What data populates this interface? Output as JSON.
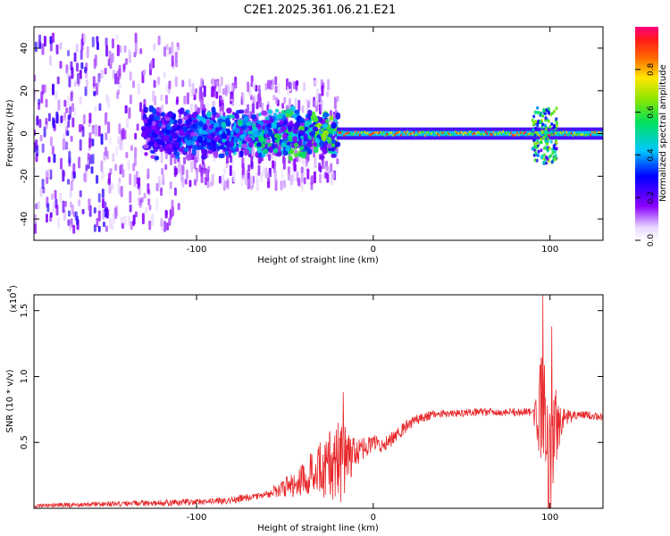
{
  "figure_title": "C2E1.2025.361.06.21.E21",
  "colors": {
    "snr_line": "#e8282b",
    "axis": "#000000",
    "cbar_top": "#ff007f",
    "cbar_bottom": "#e8d8ff"
  },
  "chart_data": [
    {
      "type": "heatmap",
      "title": "C2E1.2025.361.06.21.E21",
      "xlabel": "Height of straight line (km)",
      "ylabel": "Frequency (Hz)",
      "xlim": [
        -192,
        130
      ],
      "ylim": [
        -50,
        50
      ],
      "xticks": [
        -100,
        0,
        100
      ],
      "yticks": [
        -40,
        -20,
        0,
        20,
        40
      ],
      "xtick_labels": [
        "-100",
        "0",
        "100"
      ],
      "ytick_labels": [
        "-40",
        "-20",
        "0",
        "20",
        "40"
      ],
      "colorbar": {
        "label": "Normalized spectral amplitude",
        "range": [
          0.0,
          1.0
        ],
        "ticks": [
          0.0,
          0.2,
          0.4,
          0.6,
          0.8
        ],
        "tick_labels": [
          "0.0",
          "0.2",
          "0.4",
          "0.6",
          "0.8"
        ],
        "colormap": "white-violet-blue-cyan-green-yellow-red-magenta"
      },
      "features": [
        {
          "name": "noisy broadband region",
          "x_range": [
            -192,
            -20
          ],
          "freq_spread_hz": 45,
          "amplitude": 0.15
        },
        {
          "name": "central band",
          "x_range": [
            -130,
            -20
          ],
          "freq_center_hz": 0,
          "freq_width_hz": 12,
          "amplitude": 0.4
        },
        {
          "name": "narrow signal line",
          "x_range": [
            -20,
            130
          ],
          "freq_center_hz": 0,
          "freq_width_hz": 3,
          "amplitude": 0.9
        },
        {
          "name": "disturbance",
          "x_center": 97,
          "freq_range_hz": [
            -14,
            12
          ],
          "amplitude": 0.5
        }
      ]
    },
    {
      "type": "line",
      "xlabel": "Height of straight line (km)",
      "ylabel": "SNR (10 * v/v)",
      "y_multiplier": "(x10",
      "y_multiplier_exp": "4",
      "y_multiplier_close": ")",
      "xlim": [
        -192,
        130
      ],
      "ylim": [
        0,
        1.62
      ],
      "xticks": [
        -100,
        0,
        100
      ],
      "yticks": [
        0.5,
        1.0,
        1.5
      ],
      "xtick_labels": [
        "-100",
        "0",
        "100"
      ],
      "ytick_labels": [
        "0.5",
        "1.0",
        "1.5"
      ],
      "series": [
        {
          "name": "SNR",
          "envelope_x": [
            -192,
            -160,
            -120,
            -80,
            -60,
            -45,
            -35,
            -25,
            -18,
            -12,
            -6,
            0,
            5,
            10,
            15,
            20,
            30,
            40,
            60,
            80,
            90,
            93,
            96,
            98,
            100,
            103,
            108,
            115,
            120,
            130
          ],
          "envelope_y": [
            0.02,
            0.03,
            0.04,
            0.06,
            0.11,
            0.18,
            0.26,
            0.33,
            0.37,
            0.4,
            0.45,
            0.5,
            0.47,
            0.52,
            0.58,
            0.64,
            0.7,
            0.72,
            0.73,
            0.73,
            0.73,
            0.7,
            0.85,
            0.55,
            0.3,
            0.65,
            0.7,
            0.7,
            0.71,
            0.69
          ],
          "noise_x": [
            -192,
            -60,
            -40,
            -25,
            -18,
            -10,
            0,
            15,
            30,
            40,
            90,
            93,
            96,
            98,
            100,
            103,
            108,
            115,
            130
          ],
          "noise_amp": [
            0.015,
            0.03,
            0.12,
            0.26,
            0.34,
            0.1,
            0.06,
            0.05,
            0.04,
            0.03,
            0.03,
            0.2,
            0.75,
            0.6,
            0.5,
            0.35,
            0.08,
            0.03,
            0.03
          ],
          "peak_annotations": [
            {
              "x": -17,
              "y": 0.88
            },
            {
              "x": 96,
              "y": 1.62
            },
            {
              "x": 101,
              "y": 1.38
            }
          ]
        }
      ]
    }
  ]
}
